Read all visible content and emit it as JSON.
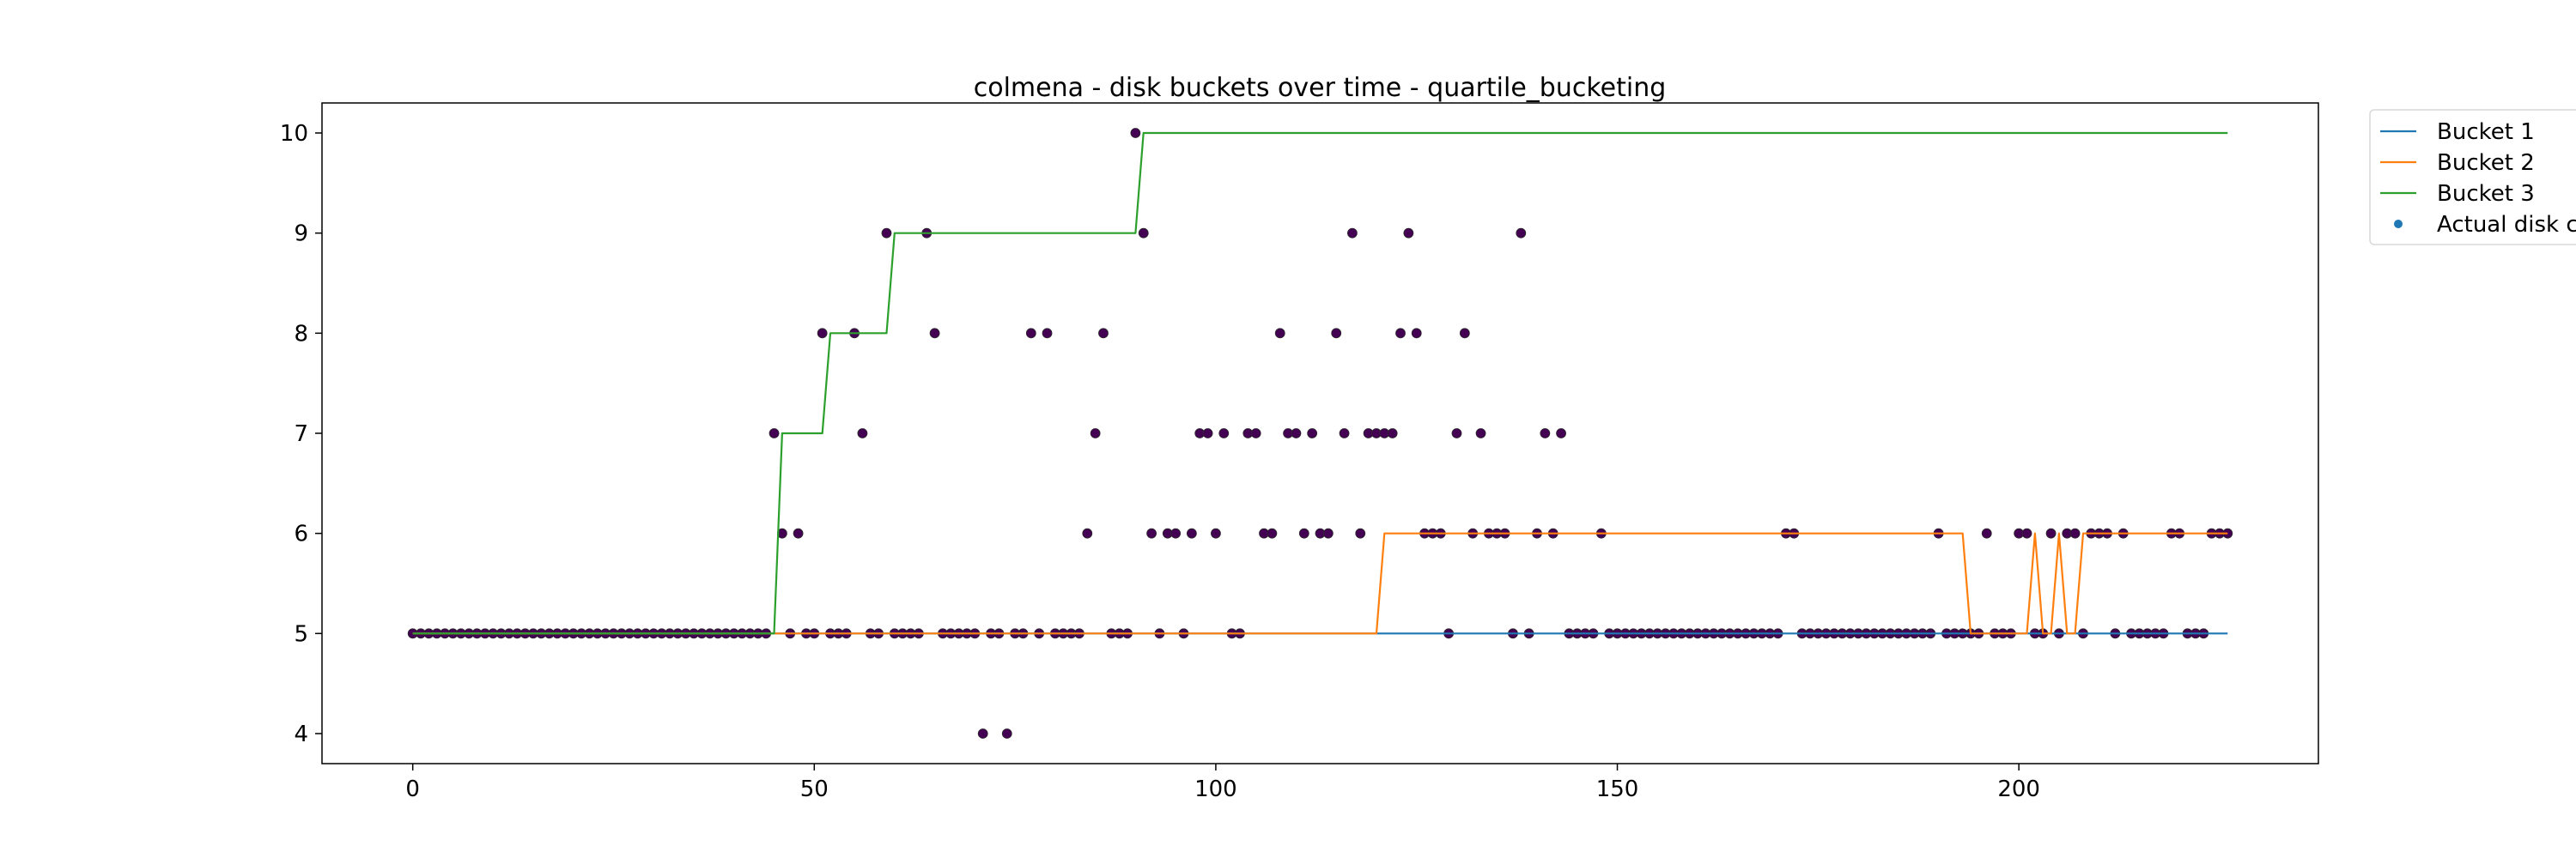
{
  "chart_data": {
    "type": "line",
    "title": "colmena - disk buckets over time - quartile_bucketing",
    "xlabel": "",
    "ylabel": "",
    "xlim": [
      -11.3,
      237.3
    ],
    "ylim": [
      3.7,
      10.3
    ],
    "xticks": [
      0,
      50,
      100,
      150,
      200
    ],
    "yticks": [
      4,
      5,
      6,
      7,
      8,
      9,
      10
    ],
    "grid": false,
    "legend_position": "outside-top-right",
    "legend": [
      "Bucket 1",
      "Bucket 2",
      "Bucket 3",
      "Actual disk co"
    ],
    "series": [
      {
        "name": "Bucket 1",
        "color": "#1f77b4",
        "points": [
          [
            0,
            5
          ],
          [
            226,
            5
          ]
        ]
      },
      {
        "name": "Bucket 2",
        "color": "#ff7f0e",
        "points": [
          [
            0,
            5
          ],
          [
            120,
            5
          ],
          [
            121,
            6
          ],
          [
            193,
            6
          ],
          [
            194,
            5
          ],
          [
            201,
            5
          ],
          [
            202,
            6
          ],
          [
            203,
            5
          ],
          [
            204,
            5
          ],
          [
            205,
            6
          ],
          [
            206,
            5
          ],
          [
            207,
            5
          ],
          [
            208,
            6
          ],
          [
            226,
            6
          ]
        ]
      },
      {
        "name": "Bucket 3",
        "color": "#2ca02c",
        "points": [
          [
            0,
            5
          ],
          [
            45,
            5
          ],
          [
            46,
            7
          ],
          [
            51,
            7
          ],
          [
            52,
            8
          ],
          [
            59,
            8
          ],
          [
            60,
            9
          ],
          [
            90,
            9
          ],
          [
            91,
            10
          ],
          [
            226,
            10
          ]
        ]
      },
      {
        "name": "Actual disk co",
        "type": "scatter",
        "color": "#440154",
        "legend_color": "#1f77b4",
        "points": [
          [
            0,
            5
          ],
          [
            1,
            5
          ],
          [
            2,
            5
          ],
          [
            3,
            5
          ],
          [
            4,
            5
          ],
          [
            5,
            5
          ],
          [
            6,
            5
          ],
          [
            7,
            5
          ],
          [
            8,
            5
          ],
          [
            9,
            5
          ],
          [
            10,
            5
          ],
          [
            11,
            5
          ],
          [
            12,
            5
          ],
          [
            13,
            5
          ],
          [
            14,
            5
          ],
          [
            15,
            5
          ],
          [
            16,
            5
          ],
          [
            17,
            5
          ],
          [
            18,
            5
          ],
          [
            19,
            5
          ],
          [
            20,
            5
          ],
          [
            21,
            5
          ],
          [
            22,
            5
          ],
          [
            23,
            5
          ],
          [
            24,
            5
          ],
          [
            25,
            5
          ],
          [
            26,
            5
          ],
          [
            27,
            5
          ],
          [
            28,
            5
          ],
          [
            29,
            5
          ],
          [
            30,
            5
          ],
          [
            31,
            5
          ],
          [
            32,
            5
          ],
          [
            33,
            5
          ],
          [
            34,
            5
          ],
          [
            35,
            5
          ],
          [
            36,
            5
          ],
          [
            37,
            5
          ],
          [
            38,
            5
          ],
          [
            39,
            5
          ],
          [
            40,
            5
          ],
          [
            41,
            5
          ],
          [
            42,
            5
          ],
          [
            43,
            5
          ],
          [
            44,
            5
          ],
          [
            45,
            7
          ],
          [
            46,
            6
          ],
          [
            47,
            5
          ],
          [
            48,
            6
          ],
          [
            49,
            5
          ],
          [
            50,
            5
          ],
          [
            51,
            8
          ],
          [
            52,
            5
          ],
          [
            53,
            5
          ],
          [
            54,
            5
          ],
          [
            55,
            8
          ],
          [
            56,
            7
          ],
          [
            57,
            5
          ],
          [
            58,
            5
          ],
          [
            59,
            9
          ],
          [
            60,
            5
          ],
          [
            61,
            5
          ],
          [
            62,
            5
          ],
          [
            63,
            5
          ],
          [
            64,
            9
          ],
          [
            65,
            8
          ],
          [
            66,
            5
          ],
          [
            67,
            5
          ],
          [
            68,
            5
          ],
          [
            69,
            5
          ],
          [
            70,
            5
          ],
          [
            71,
            4
          ],
          [
            72,
            5
          ],
          [
            73,
            5
          ],
          [
            74,
            4
          ],
          [
            75,
            5
          ],
          [
            76,
            5
          ],
          [
            77,
            8
          ],
          [
            78,
            5
          ],
          [
            79,
            8
          ],
          [
            80,
            5
          ],
          [
            81,
            5
          ],
          [
            82,
            5
          ],
          [
            83,
            5
          ],
          [
            84,
            6
          ],
          [
            85,
            7
          ],
          [
            86,
            8
          ],
          [
            87,
            5
          ],
          [
            88,
            5
          ],
          [
            89,
            5
          ],
          [
            90,
            10
          ],
          [
            91,
            9
          ],
          [
            92,
            6
          ],
          [
            93,
            5
          ],
          [
            94,
            6
          ],
          [
            95,
            6
          ],
          [
            96,
            5
          ],
          [
            97,
            6
          ],
          [
            98,
            7
          ],
          [
            99,
            7
          ],
          [
            100,
            6
          ],
          [
            101,
            7
          ],
          [
            102,
            5
          ],
          [
            103,
            5
          ],
          [
            104,
            7
          ],
          [
            105,
            7
          ],
          [
            106,
            6
          ],
          [
            107,
            6
          ],
          [
            108,
            8
          ],
          [
            109,
            7
          ],
          [
            110,
            7
          ],
          [
            111,
            6
          ],
          [
            112,
            7
          ],
          [
            113,
            6
          ],
          [
            114,
            6
          ],
          [
            115,
            8
          ],
          [
            116,
            7
          ],
          [
            117,
            9
          ],
          [
            118,
            6
          ],
          [
            119,
            7
          ],
          [
            120,
            7
          ],
          [
            121,
            7
          ],
          [
            122,
            7
          ],
          [
            123,
            8
          ],
          [
            124,
            9
          ],
          [
            125,
            8
          ],
          [
            126,
            6
          ],
          [
            127,
            6
          ],
          [
            128,
            6
          ],
          [
            129,
            5
          ],
          [
            130,
            7
          ],
          [
            131,
            8
          ],
          [
            132,
            6
          ],
          [
            133,
            7
          ],
          [
            134,
            6
          ],
          [
            135,
            6
          ],
          [
            136,
            6
          ],
          [
            137,
            5
          ],
          [
            138,
            9
          ],
          [
            139,
            5
          ],
          [
            140,
            6
          ],
          [
            141,
            7
          ],
          [
            142,
            6
          ],
          [
            143,
            7
          ],
          [
            144,
            5
          ],
          [
            145,
            5
          ],
          [
            146,
            5
          ],
          [
            147,
            5
          ],
          [
            148,
            6
          ],
          [
            149,
            5
          ],
          [
            150,
            5
          ],
          [
            151,
            5
          ],
          [
            152,
            5
          ],
          [
            153,
            5
          ],
          [
            154,
            5
          ],
          [
            155,
            5
          ],
          [
            156,
            5
          ],
          [
            157,
            5
          ],
          [
            158,
            5
          ],
          [
            159,
            5
          ],
          [
            160,
            5
          ],
          [
            161,
            5
          ],
          [
            162,
            5
          ],
          [
            163,
            5
          ],
          [
            164,
            5
          ],
          [
            165,
            5
          ],
          [
            166,
            5
          ],
          [
            167,
            5
          ],
          [
            168,
            5
          ],
          [
            169,
            5
          ],
          [
            170,
            5
          ],
          [
            171,
            6
          ],
          [
            172,
            6
          ],
          [
            173,
            5
          ],
          [
            174,
            5
          ],
          [
            175,
            5
          ],
          [
            176,
            5
          ],
          [
            177,
            5
          ],
          [
            178,
            5
          ],
          [
            179,
            5
          ],
          [
            180,
            5
          ],
          [
            181,
            5
          ],
          [
            182,
            5
          ],
          [
            183,
            5
          ],
          [
            184,
            5
          ],
          [
            185,
            5
          ],
          [
            186,
            5
          ],
          [
            187,
            5
          ],
          [
            188,
            5
          ],
          [
            189,
            5
          ],
          [
            190,
            6
          ],
          [
            191,
            5
          ],
          [
            192,
            5
          ],
          [
            193,
            5
          ],
          [
            194,
            5
          ],
          [
            195,
            5
          ],
          [
            196,
            6
          ],
          [
            197,
            5
          ],
          [
            198,
            5
          ],
          [
            199,
            5
          ],
          [
            200,
            6
          ],
          [
            201,
            6
          ],
          [
            202,
            5
          ],
          [
            203,
            5
          ],
          [
            204,
            6
          ],
          [
            205,
            5
          ],
          [
            206,
            6
          ],
          [
            207,
            6
          ],
          [
            208,
            5
          ],
          [
            209,
            6
          ],
          [
            210,
            6
          ],
          [
            211,
            6
          ],
          [
            212,
            5
          ],
          [
            213,
            6
          ],
          [
            214,
            5
          ],
          [
            215,
            5
          ],
          [
            216,
            5
          ],
          [
            217,
            5
          ],
          [
            218,
            5
          ],
          [
            219,
            6
          ],
          [
            220,
            6
          ],
          [
            221,
            5
          ],
          [
            222,
            5
          ],
          [
            223,
            5
          ],
          [
            224,
            6
          ],
          [
            225,
            6
          ],
          [
            226,
            6
          ]
        ]
      }
    ]
  }
}
